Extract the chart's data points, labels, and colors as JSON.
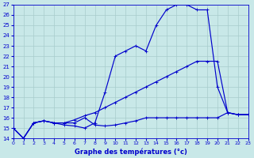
{
  "xlabel": "Graphe des températures (°c)",
  "background_color": "#c8e8e8",
  "grid_color": "#a8cccc",
  "line_color": "#0000cc",
  "xlim": [
    0,
    23
  ],
  "ylim": [
    14,
    27
  ],
  "yticks": [
    14,
    15,
    16,
    17,
    18,
    19,
    20,
    21,
    22,
    23,
    24,
    25,
    26,
    27
  ],
  "xticks": [
    0,
    1,
    2,
    3,
    4,
    5,
    6,
    7,
    8,
    9,
    10,
    11,
    12,
    13,
    14,
    15,
    16,
    17,
    18,
    19,
    20,
    21,
    22,
    23
  ],
  "line1_x": [
    0,
    1,
    2,
    3,
    4,
    5,
    6,
    7,
    8,
    9,
    10,
    11,
    12,
    13,
    14,
    15,
    16,
    17,
    18,
    19,
    20,
    21,
    22,
    23
  ],
  "line1_y": [
    15.0,
    14.0,
    15.5,
    15.7,
    15.5,
    15.3,
    15.2,
    15.0,
    15.5,
    18.5,
    22.0,
    22.5,
    23.0,
    22.5,
    25.0,
    26.5,
    27.0,
    27.0,
    26.5,
    26.5,
    19.0,
    16.5,
    16.3,
    16.3
  ],
  "line2_x": [
    0,
    1,
    2,
    3,
    4,
    5,
    6,
    7,
    8,
    9,
    10,
    11,
    12,
    13,
    14,
    15,
    16,
    17,
    18,
    19,
    20,
    21,
    22,
    23
  ],
  "line2_y": [
    15.0,
    14.0,
    15.5,
    15.7,
    15.5,
    15.5,
    15.8,
    16.2,
    16.5,
    17.0,
    17.5,
    18.0,
    18.5,
    19.0,
    19.5,
    20.0,
    20.5,
    21.0,
    21.5,
    21.5,
    21.5,
    16.5,
    16.3,
    16.3
  ],
  "line3_x": [
    0,
    1,
    2,
    3,
    4,
    5,
    6,
    7,
    8,
    9,
    10,
    11,
    12,
    13,
    14,
    15,
    16,
    17,
    18,
    19,
    20,
    21,
    22,
    23
  ],
  "line3_y": [
    15.0,
    14.0,
    15.5,
    15.7,
    15.5,
    15.5,
    15.5,
    16.0,
    15.3,
    15.2,
    15.3,
    15.5,
    15.7,
    16.0,
    16.0,
    16.0,
    16.0,
    16.0,
    16.0,
    16.0,
    16.0,
    16.5,
    16.3,
    16.3
  ]
}
